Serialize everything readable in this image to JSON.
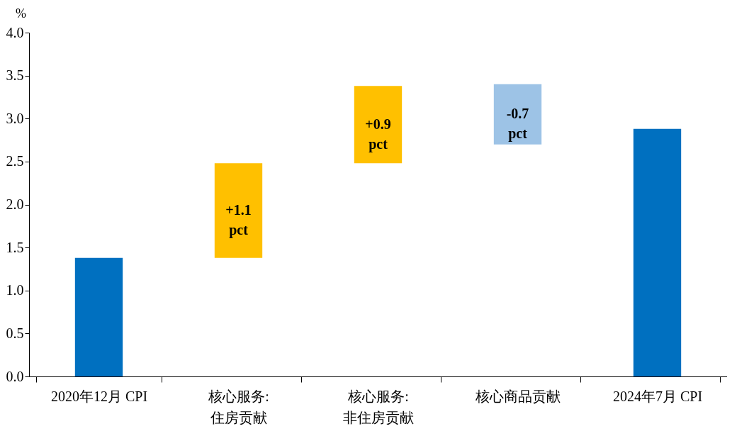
{
  "chart_data": {
    "type": "bar",
    "ylabel": "%",
    "categories": [
      "2020年12月 CPI",
      "核心服务:\n住房贡献",
      "核心服务:\n非住房贡献",
      "核心商品贡献",
      "2024年7月 CPI"
    ],
    "values": [
      1.38,
      1.1,
      0.9,
      -0.7,
      2.88
    ],
    "base": [
      0,
      1.38,
      2.48,
      3.4,
      0
    ],
    "colors": [
      "#0070c0",
      "#ffc000",
      "#ffc000",
      "#9dc3e6",
      "#0070c0"
    ],
    "value_labels": [
      null,
      "+1.1\npct",
      "+0.9\npct",
      "-0.7\npct",
      null
    ],
    "ylim": [
      0,
      4
    ],
    "yticks": [
      {
        "value": 0,
        "label": "0.0"
      },
      {
        "value": 0.5,
        "label": "0.5"
      },
      {
        "value": 1,
        "label": "1.0"
      },
      {
        "value": 1.5,
        "label": "1.5"
      },
      {
        "value": 2,
        "label": "2.0"
      },
      {
        "value": 2.5,
        "label": "2.5"
      },
      {
        "value": 3,
        "label": "3.0"
      },
      {
        "value": 3.5,
        "label": "3.5"
      },
      {
        "value": 4,
        "label": "4.0"
      }
    ],
    "grid": false
  }
}
